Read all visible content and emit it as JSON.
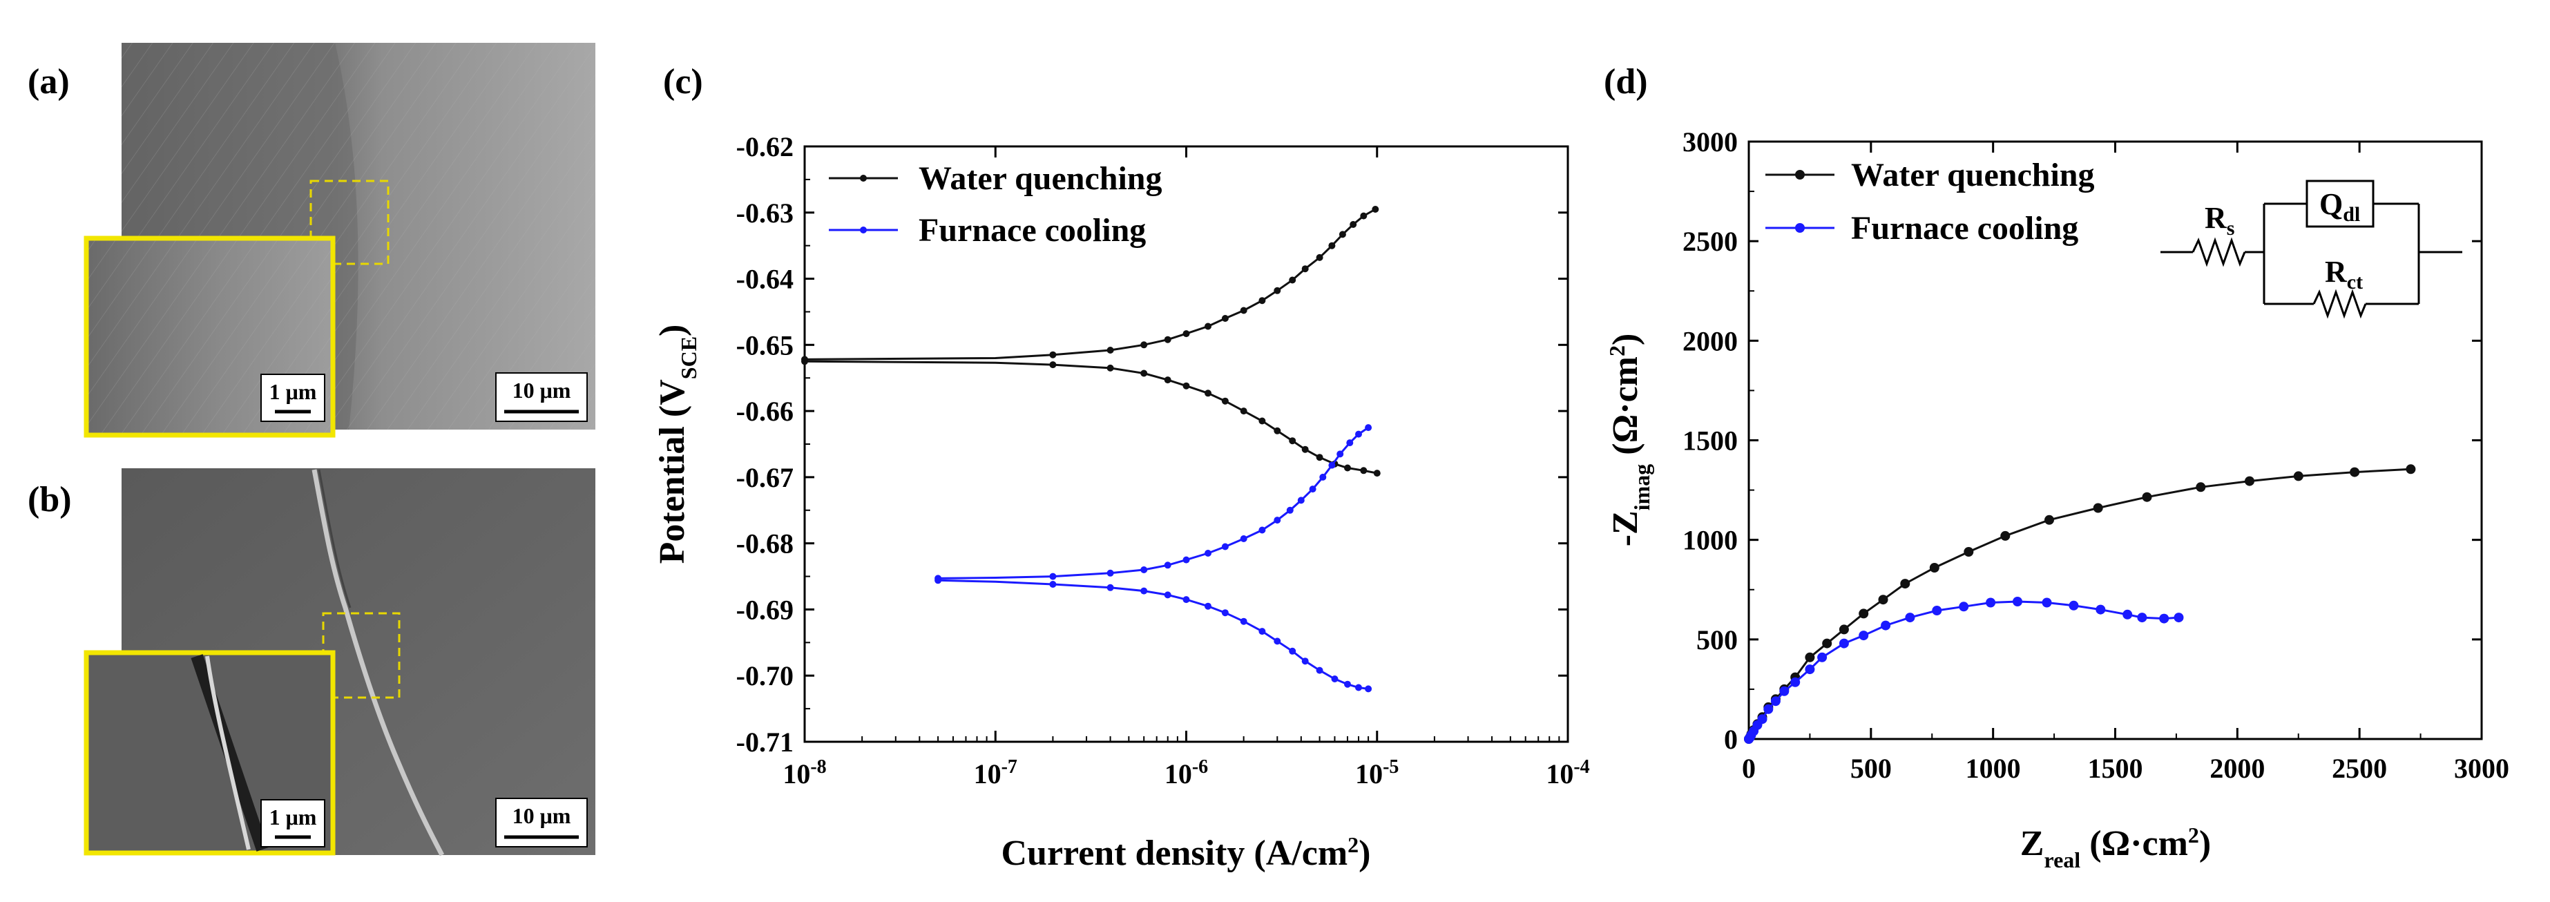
{
  "panels": {
    "a": {
      "label": "(a)",
      "scale_inset": "1 μm",
      "scale_main": "10 μm"
    },
    "b": {
      "label": "(b)",
      "scale_inset": "1 μm",
      "scale_main": "10 μm"
    }
  },
  "colors": {
    "water": "#111111",
    "furnace": "#1a1aff",
    "inset_border": "#f2e600",
    "dashed_box": "#e8d800"
  },
  "chart_data": [
    {
      "panel": "(c)",
      "type": "line",
      "xscale": "log",
      "xlim": [
        1e-08,
        0.0001
      ],
      "ylim": [
        -0.71,
        -0.62
      ],
      "x_ticks": [
        {
          "base": "10",
          "exp": "-8"
        },
        {
          "base": "10",
          "exp": "-7"
        },
        {
          "base": "10",
          "exp": "-6"
        },
        {
          "base": "10",
          "exp": "-5"
        },
        {
          "base": "10",
          "exp": "-4"
        }
      ],
      "y_ticks": [
        "-0.62",
        "-0.63",
        "-0.64",
        "-0.65",
        "-0.66",
        "-0.67",
        "-0.68",
        "-0.69",
        "-0.70",
        "-0.71"
      ],
      "xlabel": "Current density (A/cm",
      "xlabel_sup": "2",
      "xlabel_end": ")",
      "ylabel": "Potential (V",
      "ylabel_sub": "SCE",
      "ylabel_end": ")",
      "legend_position": "top-left",
      "series": [
        {
          "name": "Water quenching",
          "color": "#111111",
          "branches": [
            {
              "points": [
                [
                  1e-08,
                  -0.6522
                ],
                [
                  1e-07,
                  -0.652
                ],
                [
                  2e-07,
                  -0.6515
                ],
                [
                  4e-07,
                  -0.6508
                ],
                [
                  6e-07,
                  -0.65
                ],
                [
                  8e-07,
                  -0.6492
                ],
                [
                  1e-06,
                  -0.6483
                ],
                [
                  1.3e-06,
                  -0.6472
                ],
                [
                  1.6e-06,
                  -0.646
                ],
                [
                  2e-06,
                  -0.6448
                ],
                [
                  2.5e-06,
                  -0.6433
                ],
                [
                  3e-06,
                  -0.6418
                ],
                [
                  3.6e-06,
                  -0.6402
                ],
                [
                  4.2e-06,
                  -0.6385
                ],
                [
                  5e-06,
                  -0.6368
                ],
                [
                  5.8e-06,
                  -0.635
                ],
                [
                  6.6e-06,
                  -0.6333
                ],
                [
                  7.5e-06,
                  -0.6318
                ],
                [
                  8.5e-06,
                  -0.6305
                ],
                [
                  9.8e-06,
                  -0.6295
                ]
              ]
            },
            {
              "points": [
                [
                  1e-08,
                  -0.6525
                ],
                [
                  1e-07,
                  -0.6527
                ],
                [
                  2e-07,
                  -0.653
                ],
                [
                  4e-07,
                  -0.6535
                ],
                [
                  6e-07,
                  -0.6543
                ],
                [
                  8e-07,
                  -0.6553
                ],
                [
                  1e-06,
                  -0.6562
                ],
                [
                  1.3e-06,
                  -0.6573
                ],
                [
                  1.6e-06,
                  -0.6585
                ],
                [
                  2e-06,
                  -0.66
                ],
                [
                  2.5e-06,
                  -0.6615
                ],
                [
                  3e-06,
                  -0.663
                ],
                [
                  3.6e-06,
                  -0.6645
                ],
                [
                  4.2e-06,
                  -0.6658
                ],
                [
                  5e-06,
                  -0.667
                ],
                [
                  6e-06,
                  -0.668
                ],
                [
                  7e-06,
                  -0.6686
                ],
                [
                  8.5e-06,
                  -0.669
                ],
                [
                  1e-05,
                  -0.6694
                ]
              ]
            }
          ]
        },
        {
          "name": "Furnace cooling",
          "color": "#1a1aff",
          "branches": [
            {
              "points": [
                [
                  5e-08,
                  -0.6853
                ],
                [
                  1e-07,
                  -0.6852
                ],
                [
                  2e-07,
                  -0.685
                ],
                [
                  4e-07,
                  -0.6845
                ],
                [
                  6e-07,
                  -0.684
                ],
                [
                  8e-07,
                  -0.6833
                ],
                [
                  1e-06,
                  -0.6825
                ],
                [
                  1.3e-06,
                  -0.6815
                ],
                [
                  1.6e-06,
                  -0.6805
                ],
                [
                  2e-06,
                  -0.6793
                ],
                [
                  2.5e-06,
                  -0.678
                ],
                [
                  3e-06,
                  -0.6765
                ],
                [
                  3.5e-06,
                  -0.675
                ],
                [
                  4e-06,
                  -0.6735
                ],
                [
                  4.6e-06,
                  -0.6718
                ],
                [
                  5.2e-06,
                  -0.67
                ],
                [
                  5.8e-06,
                  -0.6682
                ],
                [
                  6.4e-06,
                  -0.6665
                ],
                [
                  7.2e-06,
                  -0.6648
                ],
                [
                  8e-06,
                  -0.6635
                ],
                [
                  9e-06,
                  -0.6625
                ]
              ]
            },
            {
              "points": [
                [
                  5e-08,
                  -0.6856
                ],
                [
                  1e-07,
                  -0.6858
                ],
                [
                  2e-07,
                  -0.6862
                ],
                [
                  4e-07,
                  -0.6867
                ],
                [
                  6e-07,
                  -0.6872
                ],
                [
                  8e-07,
                  -0.6878
                ],
                [
                  1e-06,
                  -0.6885
                ],
                [
                  1.3e-06,
                  -0.6895
                ],
                [
                  1.6e-06,
                  -0.6905
                ],
                [
                  2e-06,
                  -0.6918
                ],
                [
                  2.5e-06,
                  -0.6933
                ],
                [
                  3e-06,
                  -0.6948
                ],
                [
                  3.6e-06,
                  -0.6963
                ],
                [
                  4.2e-06,
                  -0.6978
                ],
                [
                  5e-06,
                  -0.6992
                ],
                [
                  6e-06,
                  -0.7005
                ],
                [
                  7e-06,
                  -0.7013
                ],
                [
                  8e-06,
                  -0.7018
                ],
                [
                  9e-06,
                  -0.702
                ]
              ]
            }
          ]
        }
      ]
    },
    {
      "panel": "(d)",
      "type": "line",
      "xlim": [
        0,
        3000
      ],
      "ylim": [
        0,
        3000
      ],
      "x_ticks": [
        "0",
        "500",
        "1000",
        "1500",
        "2000",
        "2500",
        "3000"
      ],
      "y_ticks": [
        "0",
        "500",
        "1000",
        "1500",
        "2000",
        "2500",
        "3000"
      ],
      "xlabel": "Z",
      "xlabel_sub": "real",
      "xlabel_end": " (Ω·cm",
      "xlabel_sup": "2",
      "xlabel_close": ")",
      "ylabel": "-Z",
      "ylabel_sub": "imag",
      "ylabel_end": " (Ω·cm",
      "ylabel_sup": "2",
      "ylabel_close": ")",
      "legend_position": "top-left",
      "circuit": {
        "rs": "R",
        "rs_sub": "s",
        "q": "Q",
        "q_sub": "dl",
        "rct": "R",
        "rct_sub": "ct"
      },
      "series": [
        {
          "name": "Water quenching",
          "color": "#111111",
          "points": [
            [
              0,
              0
            ],
            [
              5,
              10
            ],
            [
              10,
              25
            ],
            [
              20,
              45
            ],
            [
              35,
              75
            ],
            [
              55,
              110
            ],
            [
              80,
              160
            ],
            [
              110,
              200
            ],
            [
              145,
              250
            ],
            [
              190,
              310
            ],
            [
              250,
              410
            ],
            [
              320,
              480
            ],
            [
              390,
              550
            ],
            [
              470,
              630
            ],
            [
              550,
              700
            ],
            [
              640,
              780
            ],
            [
              760,
              860
            ],
            [
              900,
              940
            ],
            [
              1050,
              1020
            ],
            [
              1230,
              1100
            ],
            [
              1430,
              1160
            ],
            [
              1630,
              1215
            ],
            [
              1850,
              1265
            ],
            [
              2050,
              1295
            ],
            [
              2250,
              1320
            ],
            [
              2480,
              1340
            ],
            [
              2710,
              1355
            ]
          ]
        },
        {
          "name": "Furnace cooling",
          "color": "#1a1aff",
          "points": [
            [
              0,
              0
            ],
            [
              5,
              8
            ],
            [
              10,
              20
            ],
            [
              20,
              40
            ],
            [
              35,
              70
            ],
            [
              55,
              100
            ],
            [
              80,
              150
            ],
            [
              110,
              190
            ],
            [
              145,
              240
            ],
            [
              190,
              285
            ],
            [
              250,
              350
            ],
            [
              300,
              410
            ],
            [
              390,
              480
            ],
            [
              470,
              520
            ],
            [
              560,
              570
            ],
            [
              660,
              610
            ],
            [
              770,
              645
            ],
            [
              880,
              665
            ],
            [
              990,
              685
            ],
            [
              1100,
              690
            ],
            [
              1220,
              685
            ],
            [
              1330,
              670
            ],
            [
              1440,
              650
            ],
            [
              1550,
              625
            ],
            [
              1610,
              610
            ],
            [
              1700,
              605
            ],
            [
              1760,
              610
            ]
          ]
        }
      ]
    }
  ]
}
